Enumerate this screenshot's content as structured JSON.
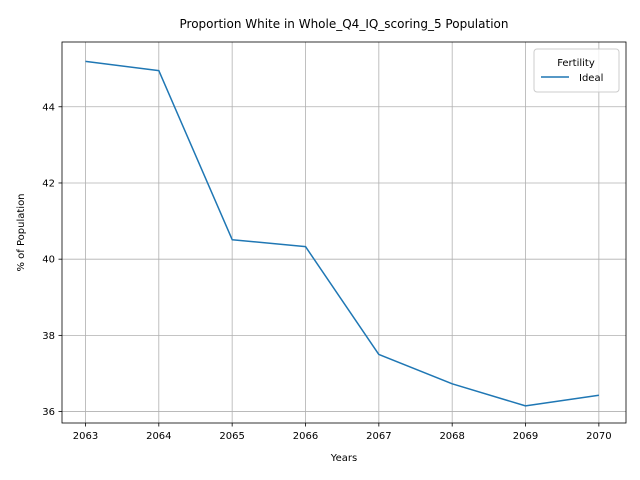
{
  "chart_data": {
    "type": "line",
    "title": "Proportion White in Whole_Q4_IQ_scoring_5 Population",
    "xlabel": "Years",
    "ylabel": "% of Population",
    "x": [
      2063,
      2064,
      2065,
      2066,
      2067,
      2068,
      2069,
      2070
    ],
    "xticks": [
      "2063",
      "2064",
      "2065",
      "2066",
      "2067",
      "2068",
      "2069",
      "2070"
    ],
    "yticks": [
      36,
      38,
      40,
      42,
      44
    ],
    "ylim": [
      35.7,
      45.7
    ],
    "grid": true,
    "legend": {
      "title": "Fertility",
      "placement": "top-right"
    },
    "series": [
      {
        "name": "Ideal",
        "color": "#1f77b4",
        "values": [
          45.19,
          44.95,
          40.51,
          40.33,
          37.5,
          36.73,
          36.15,
          36.43
        ]
      }
    ]
  }
}
